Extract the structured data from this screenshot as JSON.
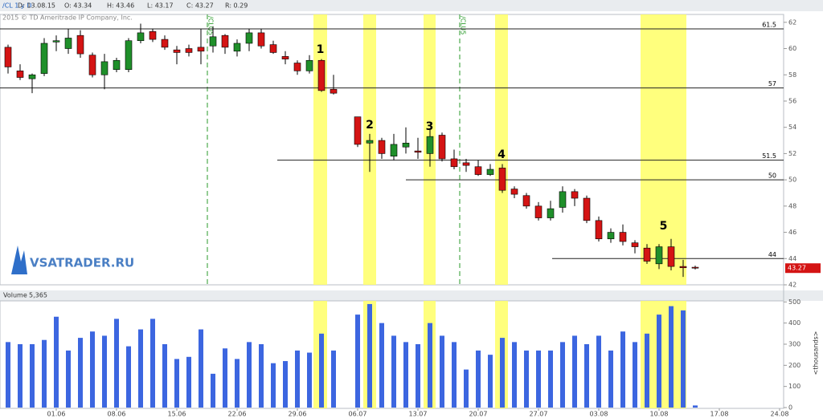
{
  "header": {
    "symbol": "/CL 1 y D",
    "fields": [
      "D: 13.08.15",
      "O: 43.34",
      "H: 43.46",
      "L: 43.17",
      "C: 43.27",
      "R: 0.29"
    ],
    "copyright": "2015 © TD Ameritrade IP Company, Inc."
  },
  "logo": "VSATRADER.RU",
  "chart_data": [
    {
      "type": "candlestick",
      "open": [
        60.1,
        58.3,
        57.7,
        58.1,
        60.5,
        60.0,
        61.0,
        59.5,
        58.0,
        58.4,
        58.4,
        60.6,
        61.3,
        60.7,
        59.9,
        60.0,
        60.1,
        60.2,
        61.0,
        59.8,
        60.4,
        61.2,
        60.3,
        59.4,
        58.9,
        58.3,
        59.1,
        56.9,
        null,
        54.8,
        52.8,
        53.0,
        51.8,
        52.5,
        52.2,
        52.0,
        53.4,
        51.6,
        51.3,
        51.0,
        50.4,
        50.9,
        49.3,
        48.8,
        48.0,
        47.1,
        47.9,
        49.1,
        48.6,
        46.9,
        45.5,
        46.0,
        45.2,
        44.8,
        43.6,
        44.9,
        43.4,
        43.34,
        null,
        null,
        null,
        null,
        null,
        null,
        null
      ],
      "high": [
        60.3,
        58.8,
        58.1,
        60.8,
        61.0,
        61.5,
        61.4,
        59.7,
        59.6,
        59.3,
        60.8,
        61.9,
        61.5,
        61.0,
        60.2,
        60.3,
        61.5,
        61.7,
        61.1,
        60.7,
        61.5,
        61.5,
        60.6,
        59.8,
        59.1,
        59.5,
        59.2,
        58.0,
        null,
        54.8,
        53.5,
        53.2,
        53.5,
        54.0,
        53.2,
        53.8,
        53.6,
        52.3,
        51.6,
        51.5,
        51.2,
        51.2,
        49.5,
        49.0,
        48.3,
        48.4,
        49.5,
        49.3,
        48.8,
        47.2,
        46.3,
        46.6,
        45.4,
        45.1,
        45.1,
        45.5,
        43.9,
        43.46,
        null,
        null,
        null,
        null,
        null,
        null,
        null
      ],
      "low": [
        58.1,
        57.6,
        56.6,
        57.9,
        59.8,
        59.6,
        59.3,
        57.8,
        56.9,
        58.2,
        58.2,
        60.4,
        60.5,
        59.9,
        58.8,
        59.4,
        58.8,
        59.7,
        59.6,
        59.4,
        59.8,
        60.0,
        59.6,
        58.8,
        58.0,
        58.1,
        56.7,
        56.5,
        null,
        52.5,
        50.6,
        51.6,
        51.5,
        52.0,
        51.6,
        51.0,
        51.4,
        50.8,
        50.6,
        50.3,
        50.3,
        49.0,
        48.6,
        47.8,
        46.9,
        46.9,
        47.5,
        48.0,
        46.7,
        45.3,
        45.2,
        45.0,
        44.4,
        43.6,
        43.2,
        43.1,
        42.6,
        43.17,
        null,
        null,
        null,
        null,
        null,
        null,
        null
      ],
      "close": [
        58.6,
        57.8,
        58.0,
        60.4,
        60.6,
        60.8,
        59.6,
        58.0,
        59.0,
        59.1,
        60.6,
        61.2,
        60.7,
        60.1,
        59.7,
        59.7,
        59.8,
        60.9,
        60.1,
        60.4,
        61.2,
        60.2,
        59.7,
        59.2,
        58.3,
        59.1,
        56.8,
        56.6,
        null,
        52.7,
        53.0,
        52.0,
        52.7,
        52.8,
        52.1,
        53.3,
        51.6,
        51.0,
        51.1,
        50.4,
        50.8,
        49.2,
        48.9,
        48.0,
        47.1,
        47.8,
        49.1,
        48.6,
        46.9,
        45.5,
        46.0,
        45.3,
        44.9,
        43.8,
        44.9,
        43.4,
        43.3,
        43.27,
        null,
        null,
        null,
        null,
        null,
        null,
        null
      ],
      "up_color": "#1f8f2a",
      "down_color": "#d41414",
      "highlight_color": "#ffff66",
      "levels": [
        61.5,
        57,
        51.5,
        50,
        44
      ],
      "annotations": [
        "1",
        "2",
        "3",
        "4",
        "5"
      ],
      "rolls": [
        "/CLQ5",
        "/CLU5"
      ],
      "ylim": [
        42,
        62.6
      ],
      "yticks": [
        42,
        44,
        46,
        48,
        50,
        52,
        54,
        56,
        58,
        60,
        62
      ]
    },
    {
      "type": "bar",
      "title": "Volume",
      "subtitle": "5,365",
      "y_axis_label": "<thousands>",
      "categories": [
        null,
        null,
        null,
        null,
        "01.06",
        null,
        null,
        null,
        null,
        "08.06",
        null,
        null,
        null,
        null,
        "15.06",
        null,
        null,
        null,
        null,
        "22.06",
        null,
        null,
        null,
        null,
        "29.06",
        null,
        null,
        null,
        null,
        "06.07",
        null,
        null,
        null,
        null,
        "13.07",
        null,
        null,
        null,
        null,
        "20.07",
        null,
        null,
        null,
        null,
        "27.07",
        null,
        null,
        null,
        null,
        "03.08",
        null,
        null,
        null,
        null,
        "10.08",
        null,
        null,
        null,
        null,
        "17.08",
        null,
        null,
        null,
        null,
        "24.08"
      ],
      "values": [
        310,
        300,
        300,
        320,
        430,
        270,
        330,
        360,
        340,
        420,
        290,
        370,
        420,
        300,
        230,
        240,
        370,
        160,
        280,
        230,
        310,
        300,
        210,
        220,
        270,
        260,
        350,
        270,
        null,
        440,
        490,
        400,
        340,
        310,
        300,
        400,
        340,
        310,
        180,
        270,
        250,
        330,
        310,
        270,
        270,
        270,
        310,
        340,
        300,
        340,
        270,
        360,
        310,
        350,
        440,
        480,
        460,
        10,
        null,
        null,
        null,
        null,
        null,
        null,
        null
      ],
      "color": "#3c66e0",
      "ylim": [
        0,
        505
      ],
      "yticks": [
        0,
        100,
        200,
        300,
        400,
        500
      ]
    }
  ]
}
